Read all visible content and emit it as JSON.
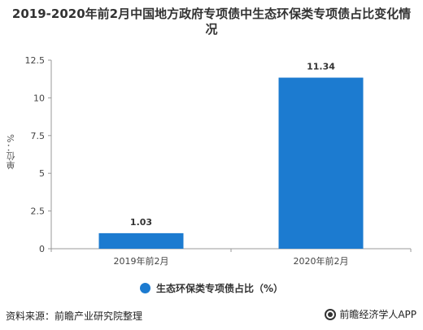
{
  "source_text": "资料来源：前瞻产业研究院整理",
  "brand_text": "前瞻经济学人APP",
  "chart_data": {
    "type": "bar",
    "title": "2019-2020年前2月中国地方政府专项债中生态环保类专项债占比变化情况",
    "xlabel": "",
    "ylabel": "单位：%",
    "categories": [
      "2019年前2月",
      "2020年前2月"
    ],
    "series": [
      {
        "name": "生态环保类专项债占比（%）",
        "values": [
          1.03,
          11.34
        ],
        "color": "#1c7bd0"
      }
    ],
    "data_labels": [
      "1.03",
      "11.34"
    ],
    "ylim": [
      0,
      12.5
    ],
    "yticks": [
      0,
      2.5,
      5,
      7.5,
      10,
      12.5
    ],
    "ytick_labels": [
      "0",
      "2.5",
      "5",
      "7.5",
      "10",
      "12.5"
    ],
    "grid": false,
    "legend_position": "bottom"
  }
}
